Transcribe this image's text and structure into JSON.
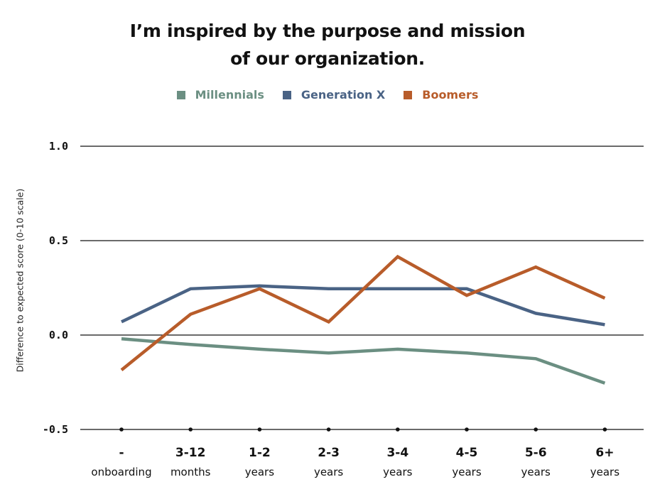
{
  "chart_data": {
    "type": "line",
    "title_lines": [
      "I’m inspired by the purpose and mission",
      "of our organization."
    ],
    "ylabel": "Difference to expected score (0-10 scale)",
    "xlabel": "",
    "ylim": [
      -0.5,
      1.0
    ],
    "yticks": [
      1.0,
      0.5,
      0.0,
      -0.5
    ],
    "ytick_labels": [
      "1.0",
      "0.5",
      "0.0",
      "-0.5"
    ],
    "categories": [
      {
        "top": "-",
        "bottom": "onboarding"
      },
      {
        "top": "3-12",
        "bottom": "months"
      },
      {
        "top": "1-2",
        "bottom": "years"
      },
      {
        "top": "2-3",
        "bottom": "years"
      },
      {
        "top": "3-4",
        "bottom": "years"
      },
      {
        "top": "4-5",
        "bottom": "years"
      },
      {
        "top": "5-6",
        "bottom": "years"
      },
      {
        "top": "6+",
        "bottom": "years"
      }
    ],
    "legend_position": "top-center",
    "grid": true,
    "series": [
      {
        "name": "Millennials",
        "color": "#6b8f82",
        "values": [
          -0.02,
          -0.05,
          -0.075,
          -0.095,
          -0.075,
          -0.095,
          -0.125,
          -0.255
        ]
      },
      {
        "name": "Generation X",
        "color": "#4a6385",
        "values": [
          0.07,
          0.245,
          0.26,
          0.245,
          0.245,
          0.245,
          0.115,
          0.055
        ]
      },
      {
        "name": "Boomers",
        "color": "#b85c2a",
        "values": [
          -0.185,
          0.11,
          0.245,
          0.07,
          0.415,
          0.21,
          0.36,
          0.195
        ]
      }
    ]
  }
}
